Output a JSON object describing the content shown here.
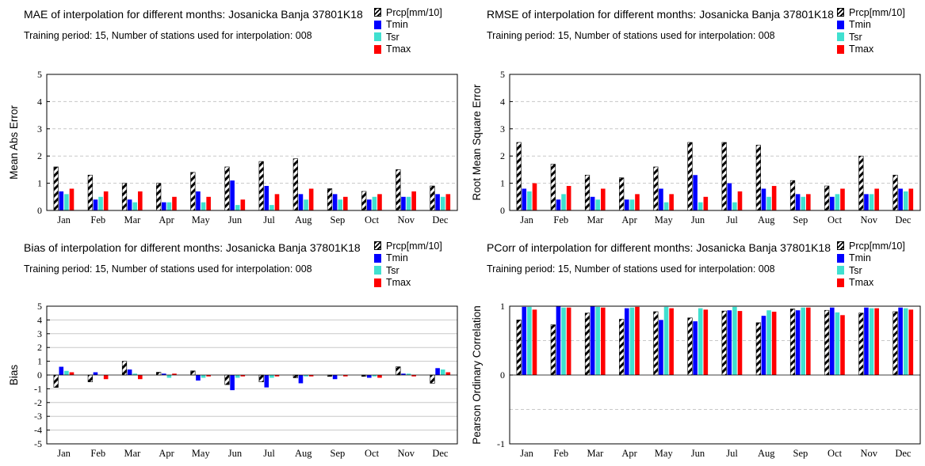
{
  "colors": {
    "Prcp": "hatch-black",
    "Tmin": "#0000ff",
    "Tsr": "#40e0d0",
    "Tmax": "#ff0000"
  },
  "chart_data": [
    {
      "type": "bar",
      "title": "MAE of interpolation for different months: Josanicka Banja  37801K18",
      "subtitle": "Training period: 15, Number of stations used for interpolation: 008",
      "ylabel": "Mean Abs Error",
      "ylim": [
        0,
        5
      ],
      "yticks": [
        "0",
        "1",
        "2",
        "3",
        "4",
        "5"
      ],
      "categories": [
        "Jan",
        "Feb",
        "Mar",
        "Apr",
        "May",
        "Jun",
        "Jul",
        "Aug",
        "Sep",
        "Oct",
        "Nov",
        "Dec"
      ],
      "series": [
        {
          "name": "Prcp[mm/10]",
          "values": [
            1.6,
            1.3,
            1.0,
            1.0,
            1.4,
            1.6,
            1.8,
            1.9,
            0.8,
            0.7,
            1.5,
            0.9
          ]
        },
        {
          "name": "Tmin",
          "values": [
            0.7,
            0.4,
            0.4,
            0.3,
            0.7,
            1.1,
            0.9,
            0.6,
            0.6,
            0.4,
            0.5,
            0.6
          ]
        },
        {
          "name": "Tsr",
          "values": [
            0.6,
            0.5,
            0.3,
            0.3,
            0.3,
            0.2,
            0.2,
            0.4,
            0.4,
            0.5,
            0.5,
            0.5
          ]
        },
        {
          "name": "Tmax",
          "values": [
            0.8,
            0.7,
            0.7,
            0.5,
            0.5,
            0.4,
            0.6,
            0.8,
            0.5,
            0.6,
            0.7,
            0.6
          ]
        }
      ],
      "grid": true,
      "legend": "top-right"
    },
    {
      "type": "bar",
      "title": "RMSE of interpolation for different months: Josanicka Banja  37801K18",
      "subtitle": "Training period: 15, Number of stations used for interpolation: 008",
      "ylabel": "Root Mean Square Error",
      "ylim": [
        0,
        5
      ],
      "yticks": [
        "0",
        "1",
        "2",
        "3",
        "4",
        "5"
      ],
      "categories": [
        "Jan",
        "Feb",
        "Mar",
        "Apr",
        "May",
        "Jun",
        "Jul",
        "Aug",
        "Sep",
        "Oct",
        "Nov",
        "Dec"
      ],
      "series": [
        {
          "name": "Prcp[mm/10]",
          "values": [
            2.5,
            1.7,
            1.3,
            1.2,
            1.6,
            2.5,
            2.5,
            2.4,
            1.1,
            0.9,
            2.0,
            1.3
          ]
        },
        {
          "name": "Tmin",
          "values": [
            0.8,
            0.4,
            0.5,
            0.4,
            0.8,
            1.3,
            1.0,
            0.8,
            0.6,
            0.5,
            0.6,
            0.8
          ]
        },
        {
          "name": "Tsr",
          "values": [
            0.7,
            0.6,
            0.4,
            0.4,
            0.3,
            0.3,
            0.3,
            0.5,
            0.5,
            0.6,
            0.6,
            0.7
          ]
        },
        {
          "name": "Tmax",
          "values": [
            1.0,
            0.9,
            0.8,
            0.6,
            0.6,
            0.5,
            0.7,
            0.9,
            0.6,
            0.8,
            0.8,
            0.8
          ]
        }
      ],
      "grid": true,
      "legend": "top-right"
    },
    {
      "type": "bar",
      "title": "Bias of interpolation for different months: Josanicka Banja  37801K18",
      "subtitle": "Training period: 15, Number of stations used for interpolation: 008",
      "ylabel": "Bias",
      "ylim": [
        -5,
        5
      ],
      "yticks": [
        "5",
        "4",
        "3",
        "2",
        "1",
        "0",
        "-1",
        "-2",
        "-3",
        "-4",
        "-5"
      ],
      "categories": [
        "Jan",
        "Feb",
        "Mar",
        "Apr",
        "May",
        "Jun",
        "Jul",
        "Aug",
        "Sep",
        "Oct",
        "Nov",
        "Dec"
      ],
      "series": [
        {
          "name": "Prcp[mm/10]",
          "values": [
            -0.9,
            -0.5,
            1.0,
            0.2,
            0.3,
            -0.7,
            -0.5,
            -0.2,
            -0.1,
            -0.1,
            0.6,
            -0.6
          ]
        },
        {
          "name": "Tmin",
          "values": [
            0.6,
            0.2,
            0.4,
            0.1,
            -0.4,
            -1.1,
            -0.9,
            -0.6,
            -0.3,
            -0.2,
            0.1,
            0.5
          ]
        },
        {
          "name": "Tsr",
          "values": [
            0.3,
            0.0,
            0.1,
            -0.2,
            -0.2,
            -0.2,
            -0.2,
            -0.1,
            0.0,
            -0.1,
            0.1,
            0.4
          ]
        },
        {
          "name": "Tmax",
          "values": [
            0.2,
            -0.3,
            -0.3,
            0.1,
            -0.1,
            -0.1,
            -0.1,
            -0.1,
            -0.1,
            -0.2,
            -0.1,
            0.2
          ]
        }
      ],
      "grid": true,
      "legend": "top-right"
    },
    {
      "type": "bar",
      "title": "PCorr of interpolation for different months: Josanicka Banja  37801K18",
      "subtitle": "Training period: 15, Number of stations used for interpolation: 008",
      "ylabel": "Pearson Ordinary Correlation",
      "ylim": [
        -1,
        1
      ],
      "yticks": [
        "1",
        "0",
        "-1"
      ],
      "categories": [
        "Jan",
        "Feb",
        "Mar",
        "Apr",
        "May",
        "Jun",
        "Jul",
        "Aug",
        "Sep",
        "Oct",
        "Nov",
        "Dec"
      ],
      "series": [
        {
          "name": "Prcp[mm/10]",
          "values": [
            0.8,
            0.73,
            0.9,
            0.81,
            0.92,
            0.83,
            0.93,
            0.76,
            0.96,
            0.94,
            0.9,
            0.92
          ]
        },
        {
          "name": "Tmin",
          "values": [
            0.99,
            1.0,
            1.0,
            0.97,
            0.8,
            0.78,
            0.94,
            0.86,
            0.94,
            0.98,
            0.98,
            0.98
          ]
        },
        {
          "name": "Tsr",
          "values": [
            0.99,
            0.98,
            0.99,
            0.98,
            0.99,
            0.97,
            0.99,
            0.94,
            0.98,
            0.91,
            0.97,
            0.97
          ]
        },
        {
          "name": "Tmax",
          "values": [
            0.95,
            0.98,
            0.98,
            0.99,
            0.97,
            0.95,
            0.93,
            0.92,
            0.98,
            0.87,
            0.97,
            0.95
          ]
        }
      ],
      "grid": true,
      "legend": "top-right"
    }
  ]
}
